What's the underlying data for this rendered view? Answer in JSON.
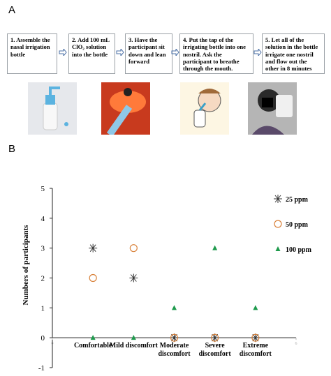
{
  "panel_a": {
    "label": "A",
    "steps": [
      "1. Assemble the nasal irrigation bottle",
      "2. Add 100 mL ClO₂ solution into the bottle",
      "3. Have the participant sit down and lean forward",
      "4. Put the tap of the irrigating bottle into one nostril. Ask the participant to breathe through the mouth.",
      "5. Let all of the solution in the bottle irrigate one nostril and flow out the other in 8 minutes"
    ]
  },
  "panel_b": {
    "label": "B"
  },
  "chart_data": {
    "type": "scatter",
    "ylabel": "Numbers of participants",
    "x": [
      1,
      2,
      3,
      4,
      5
    ],
    "categories": [
      "Comfortable",
      "Mild discomfort",
      "Moderate discomfort",
      "Severe discomfort",
      "Extreme discomfort"
    ],
    "xlim": [
      0,
      6
    ],
    "xticks": [
      0,
      6
    ],
    "ylim": [
      -1,
      5
    ],
    "yticks": [
      -1,
      0,
      1,
      2,
      3,
      4,
      5
    ],
    "series": [
      {
        "name": "25 ppm",
        "color": "#333333",
        "marker": "asterisk",
        "values": [
          3,
          2,
          0,
          0,
          0
        ]
      },
      {
        "name": "50 ppm",
        "color": "#d9823b",
        "marker": "circle",
        "values": [
          2,
          3,
          0,
          0,
          0
        ]
      },
      {
        "name": "100 ppm",
        "color": "#1e9a4c",
        "marker": "triangle",
        "values": [
          0,
          0,
          1,
          3,
          1
        ]
      }
    ]
  }
}
